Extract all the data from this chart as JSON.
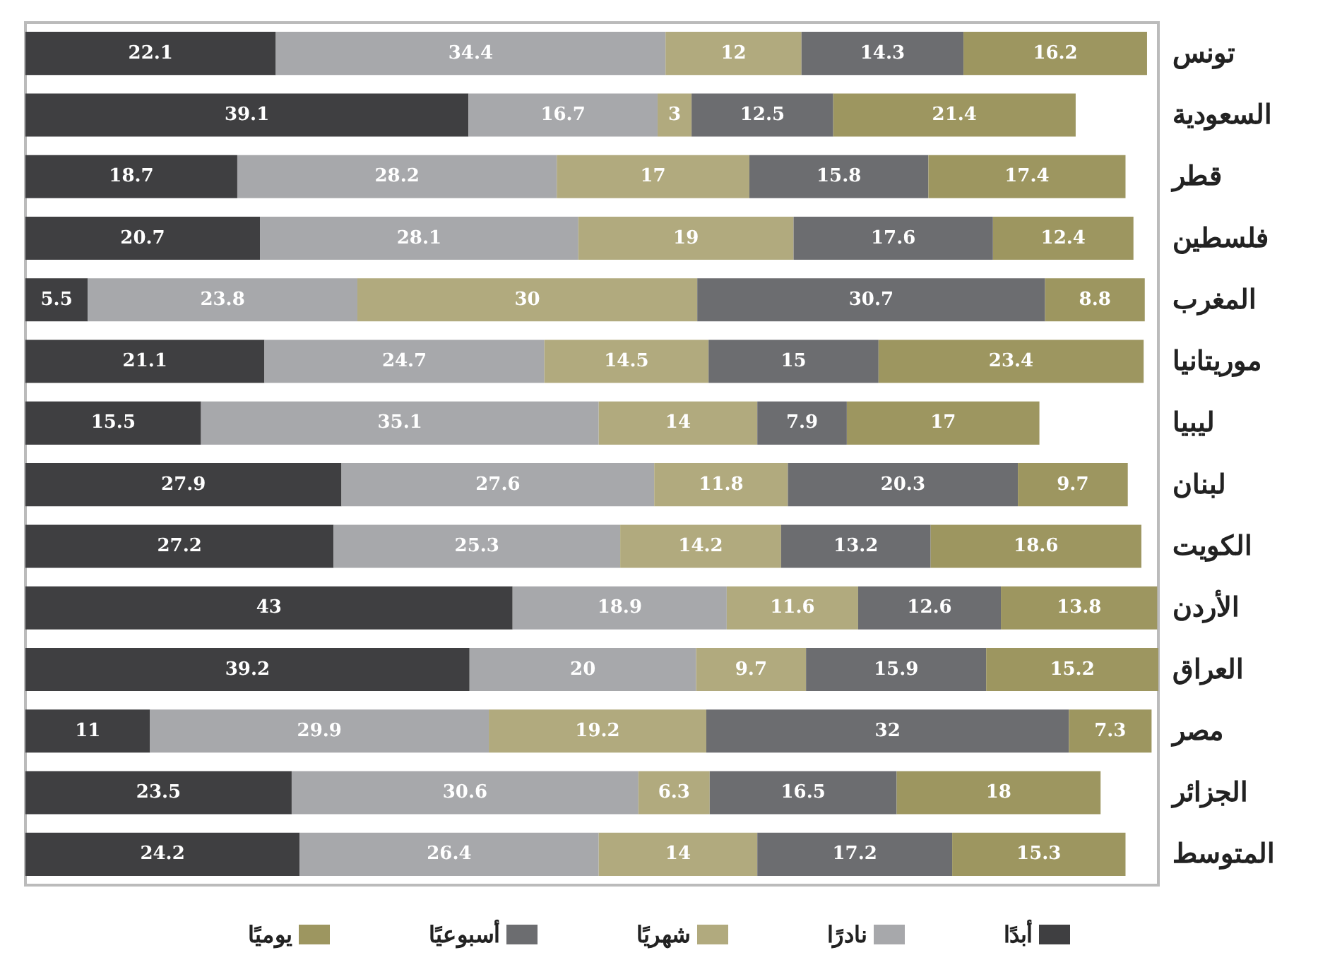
{
  "chart_data": {
    "type": "bar",
    "orientation": "horizontal",
    "stacked": true,
    "data_labels": true,
    "legend": "bottom",
    "grid": false,
    "tick_labels": "y",
    "xlim": [
      0,
      100
    ],
    "categories": [
      "تونس",
      "السعودية",
      "قطر",
      "فلسطين",
      "المغرب",
      "موريتانيا",
      "ليبيا",
      "لبنان",
      "الكويت",
      "الأردن",
      "العراق",
      "مصر",
      "الجزائر",
      "المتوسط"
    ],
    "series": [
      {
        "name": "أبدًا",
        "color": "#3f3f41",
        "values": [
          22.1,
          39.1,
          18.7,
          20.7,
          5.5,
          21.1,
          15.5,
          27.9,
          27.2,
          43,
          39.2,
          11,
          23.5,
          24.2
        ]
      },
      {
        "name": "نادرًا",
        "color": "#a7a8ab",
        "values": [
          34.4,
          16.7,
          28.2,
          28.1,
          23.8,
          24.7,
          35.1,
          27.6,
          25.3,
          18.9,
          20,
          29.9,
          30.6,
          26.4
        ]
      },
      {
        "name": "شهريًا",
        "color": "#b1aa7e",
        "values": [
          12,
          3,
          17,
          19,
          30,
          14.5,
          14,
          11.8,
          14.2,
          11.6,
          9.7,
          19.2,
          6.3,
          14
        ]
      },
      {
        "name": "أسبوعيًا",
        "color": "#6c6d70",
        "values": [
          14.3,
          12.5,
          15.8,
          17.6,
          30.7,
          15,
          7.9,
          20.3,
          13.2,
          12.6,
          15.9,
          32,
          16.5,
          17.2
        ]
      },
      {
        "name": "يوميًا",
        "color": "#9d9660",
        "values": [
          16.2,
          21.4,
          17.4,
          12.4,
          8.8,
          23.4,
          17,
          9.7,
          18.6,
          13.8,
          15.2,
          7.3,
          18,
          15.3
        ]
      }
    ]
  }
}
